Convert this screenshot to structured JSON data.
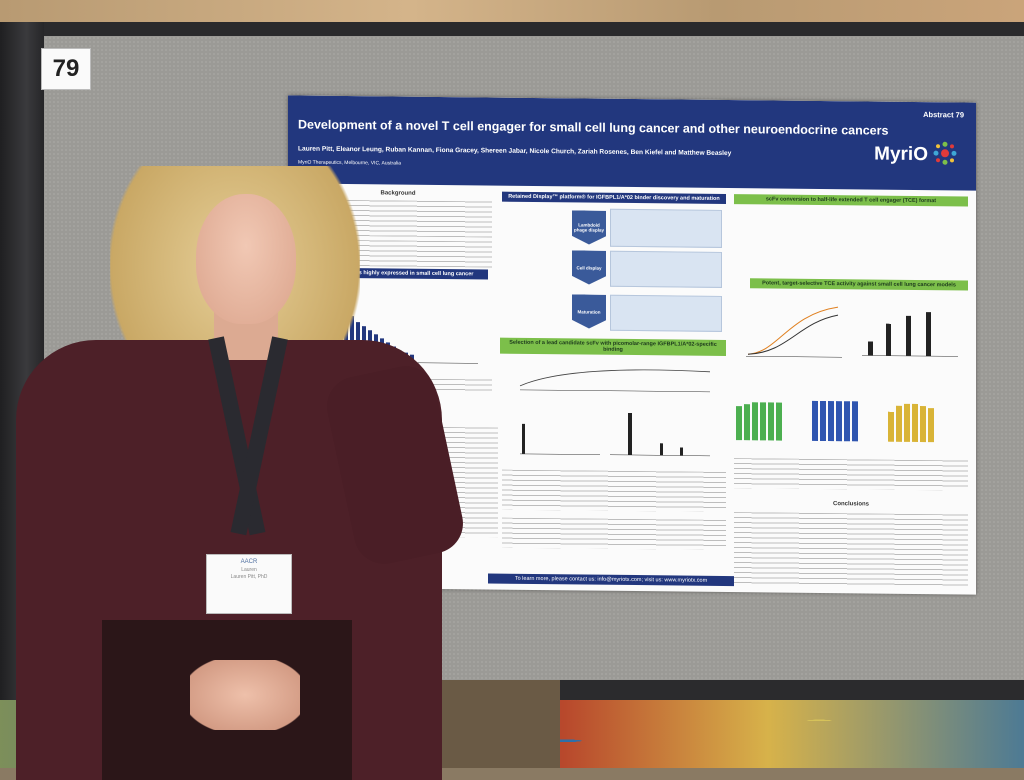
{
  "board_tag": "79",
  "poster": {
    "abstract_label": "Abstract 79",
    "title": "Development of a novel T cell engager for small cell lung cancer and other neuroendocrine cancers",
    "authors": "Lauren Pitt, Eleanor Leung, Ruban Kannan, Fiona Gracey, Shereen Jabar, Nicole Church, Zariah Rosenes, Ben Kiefel and Matthew Beasley",
    "affiliation": "MyriO Therapeutics, Melbourne, VIC, Australia",
    "logo": "MyriO",
    "sections": {
      "background": "Background",
      "igfbpl1": "IGFBPL1 is highly expressed in small cell lung cancer",
      "retained": "Retained Display™ platform® for IGFBPL1/A*02 binder discovery and maturation",
      "scfv": "scFv conversion to half-life extended T cell engager (TCE) format",
      "potent": "Potent, target-selective TCE activity against small cell lung cancer models",
      "lead": "Selection of a lead candidate scFv with picomolar-range IGFBPL1/A*02-specific binding",
      "conclusions": "Conclusions"
    },
    "steps": [
      "Lambdoid phage display",
      "Cell display",
      "Maturation"
    ],
    "footer": "To learn more, please contact us: info@myriotx.com; visit us: www.myriotx.com"
  },
  "badge": {
    "logo": "AACR",
    "name": "Lauren",
    "sub": "Lauren Pitt, PhD"
  },
  "colors": {
    "poster_header": "#22377e",
    "section_green": "#7cbf4a",
    "bar_green": "#4caf50",
    "bar_blue": "#2f55b0",
    "bar_yellow": "#d9b437"
  }
}
